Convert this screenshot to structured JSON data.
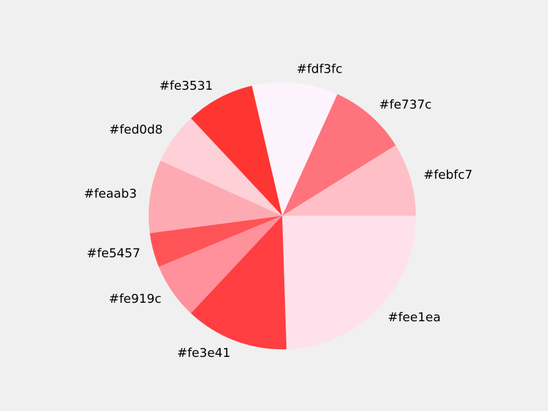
{
  "chart_data": {
    "type": "pie",
    "title": "",
    "start_angle_deg": 0,
    "direction": "counterclockwise",
    "legend": "none",
    "slices": [
      {
        "label": "#febfc7",
        "value": 8.5,
        "color": "#febfc7"
      },
      {
        "label": "#fe737c",
        "value": 9.0,
        "color": "#fe737c"
      },
      {
        "label": "#fdf3fc",
        "value": 10.0,
        "color": "#fdf3fc"
      },
      {
        "label": "#fe3531",
        "value": 8.0,
        "color": "#fe3531"
      },
      {
        "label": "#fed0d8",
        "value": 6.0,
        "color": "#fed0d8"
      },
      {
        "label": "#feaab3",
        "value": 8.5,
        "color": "#feaab3"
      },
      {
        "label": "#fe5457",
        "value": 4.0,
        "color": "#fe5457"
      },
      {
        "label": "#fe919c",
        "value": 6.5,
        "color": "#fe919c"
      },
      {
        "label": "#fe3e41",
        "value": 12.0,
        "color": "#fe3e41"
      },
      {
        "label": "#fee1ea",
        "value": 23.5,
        "color": "#fee1ea"
      }
    ]
  }
}
